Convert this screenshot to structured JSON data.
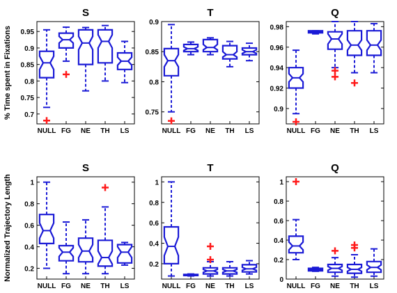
{
  "colors": {
    "box": "#1a1ad6",
    "outlier": "#ff1a1a"
  },
  "chart_data": [
    {
      "type": "boxplot",
      "title": "S",
      "ylabel": "% Time spent in Fixations",
      "categories": [
        "NULL",
        "FG",
        "NE",
        "TH",
        "LS"
      ],
      "ylim": [
        0.67,
        0.98
      ],
      "yticks": [
        "0.7",
        "0.75",
        "0.8",
        "0.85",
        "0.9",
        "0.95"
      ],
      "ytick_values": [
        0.7,
        0.75,
        0.8,
        0.85,
        0.9,
        0.95
      ],
      "boxes": [
        {
          "whislo": 0.72,
          "q1": 0.81,
          "med": 0.855,
          "q3": 0.89,
          "whishi": 0.955,
          "nlo": 0.835,
          "nhi": 0.875,
          "outliers": [
            0.68
          ]
        },
        {
          "whislo": 0.86,
          "q1": 0.9,
          "med": 0.925,
          "q3": 0.945,
          "whishi": 0.963,
          "nlo": 0.915,
          "nhi": 0.935,
          "outliers": [
            0.82
          ]
        },
        {
          "whislo": 0.77,
          "q1": 0.85,
          "med": 0.915,
          "q3": 0.955,
          "whishi": 0.962,
          "nlo": 0.895,
          "nhi": 0.935,
          "outliers": []
        },
        {
          "whislo": 0.8,
          "q1": 0.855,
          "med": 0.92,
          "q3": 0.955,
          "whishi": 0.968,
          "nlo": 0.9,
          "nhi": 0.94,
          "outliers": []
        },
        {
          "whislo": 0.795,
          "q1": 0.835,
          "med": 0.86,
          "q3": 0.885,
          "whishi": 0.92,
          "nlo": 0.848,
          "nhi": 0.872,
          "outliers": []
        }
      ]
    },
    {
      "type": "boxplot",
      "title": "T",
      "ylabel": "",
      "categories": [
        "NULL",
        "FG",
        "NE",
        "TH",
        "LS"
      ],
      "ylim": [
        0.73,
        0.9
      ],
      "yticks": [
        "0.75",
        "0.8",
        "0.85",
        "0.9"
      ],
      "ytick_values": [
        0.75,
        0.8,
        0.85,
        0.9
      ],
      "boxes": [
        {
          "whislo": 0.75,
          "q1": 0.81,
          "med": 0.835,
          "q3": 0.855,
          "whishi": 0.895,
          "nlo": 0.825,
          "nhi": 0.845,
          "outliers": [
            0.735
          ]
        },
        {
          "whislo": 0.845,
          "q1": 0.85,
          "med": 0.855,
          "q3": 0.862,
          "whishi": 0.866,
          "nlo": 0.852,
          "nhi": 0.858,
          "outliers": []
        },
        {
          "whislo": 0.845,
          "q1": 0.85,
          "med": 0.857,
          "q3": 0.87,
          "whishi": 0.873,
          "nlo": 0.853,
          "nhi": 0.862,
          "outliers": []
        },
        {
          "whislo": 0.825,
          "q1": 0.838,
          "med": 0.845,
          "q3": 0.86,
          "whishi": 0.867,
          "nlo": 0.841,
          "nhi": 0.85,
          "outliers": []
        },
        {
          "whislo": 0.835,
          "q1": 0.845,
          "med": 0.85,
          "q3": 0.856,
          "whishi": 0.864,
          "nlo": 0.847,
          "nhi": 0.853,
          "outliers": []
        }
      ]
    },
    {
      "type": "boxplot",
      "title": "Q",
      "ylabel": "",
      "categories": [
        "NULL",
        "FG",
        "NE",
        "TH",
        "LS"
      ],
      "ylim": [
        0.885,
        0.985
      ],
      "yticks": [
        "0.9",
        "0.92",
        "0.94",
        "0.96",
        "0.98"
      ],
      "ytick_values": [
        0.9,
        0.92,
        0.94,
        0.96,
        0.98
      ],
      "boxes": [
        {
          "whislo": 0.895,
          "q1": 0.92,
          "med": 0.93,
          "q3": 0.94,
          "whishi": 0.957,
          "nlo": 0.926,
          "nhi": 0.934,
          "outliers": [
            0.887
          ]
        },
        {
          "whislo": 0.973,
          "q1": 0.974,
          "med": 0.975,
          "q3": 0.976,
          "whishi": 0.976,
          "nlo": 0.9745,
          "nhi": 0.9755,
          "outliers": []
        },
        {
          "whislo": 0.94,
          "q1": 0.958,
          "med": 0.968,
          "q3": 0.975,
          "whishi": 0.985,
          "nlo": 0.963,
          "nhi": 0.973,
          "outliers": [
            0.937,
            0.931
          ]
        },
        {
          "whislo": 0.935,
          "q1": 0.952,
          "med": 0.962,
          "q3": 0.976,
          "whishi": 0.985,
          "nlo": 0.957,
          "nhi": 0.967,
          "outliers": [
            0.925
          ]
        },
        {
          "whislo": 0.935,
          "q1": 0.952,
          "med": 0.962,
          "q3": 0.976,
          "whishi": 0.983,
          "nlo": 0.957,
          "nhi": 0.967,
          "outliers": []
        }
      ]
    },
    {
      "type": "boxplot",
      "title": "S",
      "ylabel": "Normalized Trajectory Length",
      "categories": [
        "NULL",
        "FG",
        "NE",
        "TH",
        "LS"
      ],
      "ylim": [
        0.1,
        1.05
      ],
      "yticks": [
        "0.2",
        "0.4",
        "0.6",
        "0.8",
        "1"
      ],
      "ytick_values": [
        0.2,
        0.4,
        0.6,
        0.8,
        1.0
      ],
      "boxes": [
        {
          "whislo": 0.2,
          "q1": 0.43,
          "med": 0.55,
          "q3": 0.7,
          "whishi": 1.0,
          "nlo": 0.48,
          "nhi": 0.62,
          "outliers": []
        },
        {
          "whislo": 0.15,
          "q1": 0.27,
          "med": 0.35,
          "q3": 0.41,
          "whishi": 0.63,
          "nlo": 0.31,
          "nhi": 0.39,
          "outliers": []
        },
        {
          "whislo": 0.15,
          "q1": 0.26,
          "med": 0.36,
          "q3": 0.48,
          "whishi": 0.65,
          "nlo": 0.3,
          "nhi": 0.42,
          "outliers": []
        },
        {
          "whislo": 0.15,
          "q1": 0.22,
          "med": 0.3,
          "q3": 0.46,
          "whishi": 0.77,
          "nlo": 0.24,
          "nhi": 0.36,
          "outliers": [
            0.95
          ]
        },
        {
          "whislo": 0.23,
          "q1": 0.25,
          "med": 0.35,
          "q3": 0.42,
          "whishi": 0.44,
          "nlo": 0.3,
          "nhi": 0.4,
          "outliers": []
        }
      ]
    },
    {
      "type": "boxplot",
      "title": "T",
      "ylabel": "",
      "categories": [
        "NULL",
        "FG",
        "NE",
        "TH",
        "LS"
      ],
      "ylim": [
        0.05,
        1.05
      ],
      "yticks": [
        "0.2",
        "0.4",
        "0.6",
        "0.8",
        "1"
      ],
      "ytick_values": [
        0.2,
        0.4,
        0.6,
        0.8,
        1.0
      ],
      "boxes": [
        {
          "whislo": 0.08,
          "q1": 0.2,
          "med": 0.37,
          "q3": 0.56,
          "whishi": 1.0,
          "nlo": 0.28,
          "nhi": 0.46,
          "outliers": []
        },
        {
          "whislo": 0.08,
          "q1": 0.085,
          "med": 0.09,
          "q3": 0.095,
          "whishi": 0.1,
          "nlo": 0.088,
          "nhi": 0.092,
          "outliers": []
        },
        {
          "whislo": 0.08,
          "q1": 0.1,
          "med": 0.13,
          "q3": 0.16,
          "whishi": 0.22,
          "nlo": 0.115,
          "nhi": 0.145,
          "outliers": [
            0.37,
            0.24
          ]
        },
        {
          "whislo": 0.08,
          "q1": 0.1,
          "med": 0.13,
          "q3": 0.16,
          "whishi": 0.22,
          "nlo": 0.115,
          "nhi": 0.145,
          "outliers": []
        },
        {
          "whislo": 0.1,
          "q1": 0.12,
          "med": 0.15,
          "q3": 0.19,
          "whishi": 0.23,
          "nlo": 0.135,
          "nhi": 0.165,
          "outliers": []
        }
      ]
    },
    {
      "type": "boxplot",
      "title": "Q",
      "ylabel": "",
      "categories": [
        "NULL",
        "FG",
        "NE",
        "TH",
        "LS"
      ],
      "ylim": [
        0.0,
        1.05
      ],
      "yticks": [
        "0",
        "0.2",
        "0.4",
        "0.6",
        "0.8",
        "1"
      ],
      "ytick_values": [
        0.0,
        0.2,
        0.4,
        0.6,
        0.8,
        1.0
      ],
      "boxes": [
        {
          "whislo": 0.2,
          "q1": 0.27,
          "med": 0.34,
          "q3": 0.44,
          "whishi": 0.61,
          "nlo": 0.3,
          "nhi": 0.38,
          "outliers": [
            1.0
          ]
        },
        {
          "whislo": 0.08,
          "q1": 0.085,
          "med": 0.1,
          "q3": 0.11,
          "whishi": 0.12,
          "nlo": 0.095,
          "nhi": 0.105,
          "outliers": []
        },
        {
          "whislo": 0.03,
          "q1": 0.07,
          "med": 0.11,
          "q3": 0.15,
          "whishi": 0.22,
          "nlo": 0.09,
          "nhi": 0.13,
          "outliers": [
            0.29
          ]
        },
        {
          "whislo": 0.02,
          "q1": 0.06,
          "med": 0.1,
          "q3": 0.15,
          "whishi": 0.25,
          "nlo": 0.08,
          "nhi": 0.12,
          "outliers": [
            0.32,
            0.35
          ]
        },
        {
          "whislo": 0.03,
          "q1": 0.07,
          "med": 0.12,
          "q3": 0.18,
          "whishi": 0.31,
          "nlo": 0.095,
          "nhi": 0.145,
          "outliers": []
        }
      ]
    }
  ]
}
